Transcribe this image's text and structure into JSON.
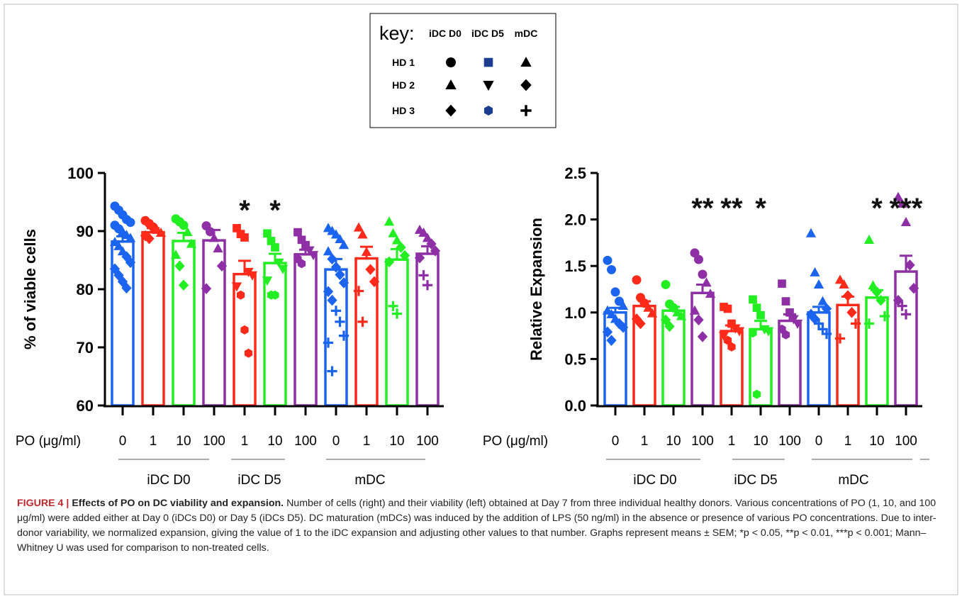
{
  "key": {
    "title": "key:",
    "columns": [
      "iDC D0",
      "iDC D5",
      "mDC"
    ],
    "rows": [
      {
        "label": "HD 1",
        "symbols": [
          "circle",
          "square",
          "triangle"
        ]
      },
      {
        "label": "HD 2",
        "symbols": [
          "triangle",
          "triangle-down",
          "diamond"
        ]
      },
      {
        "label": "HD 3",
        "symbols": [
          "diamond",
          "hexagon",
          "plus"
        ]
      }
    ]
  },
  "colors": {
    "iDC_D0": "#1a64f0",
    "iDC_D5": "#ff2a1a",
    "mDC_blue": "#1a64f0",
    "conc_1": "#ff2a1a",
    "conc_10": "#22ee22",
    "conc_100": "#8e2fa6"
  },
  "x_axis": {
    "prefix": "PO (μg/ml)",
    "ticks": [
      "0",
      "1",
      "10",
      "100",
      "1",
      "10",
      "100",
      "0",
      "1",
      "10",
      "100"
    ],
    "groups": [
      "iDC D0",
      "iDC D5",
      "mDC"
    ]
  },
  "chart_data": [
    {
      "type": "bar",
      "ylabel": "% of viable cells",
      "ylim": [
        60,
        100
      ],
      "yticks": [
        "60",
        "70",
        "80",
        "90",
        "100"
      ],
      "categories": [
        "0",
        "1",
        "10",
        "100",
        "1",
        "10",
        "100",
        "0",
        "1",
        "10",
        "100"
      ],
      "groups": [
        "iDC D0",
        "iDC D0",
        "iDC D0",
        "iDC D0",
        "iDC D5",
        "iDC D5",
        "iDC D5",
        "mDC",
        "mDC",
        "mDC",
        "mDC"
      ],
      "values": [
        88.2,
        89.8,
        88.3,
        88.4,
        82.6,
        84.5,
        86.0,
        83.4,
        85.3,
        85.1,
        86.1
      ],
      "sem": [
        0.9,
        0.7,
        1.4,
        1.8,
        2.3,
        1.6,
        0.8,
        1.8,
        2.0,
        1.8,
        1.3
      ],
      "significance": [
        "",
        "",
        "",
        "",
        "*",
        "*",
        "",
        "",
        "",
        "",
        ""
      ],
      "points": [
        [
          94.3,
          93.6,
          92.8,
          92.0,
          91.5,
          91.0,
          90.4,
          89.9,
          89.3,
          88.8,
          88.1,
          87.4,
          86.5,
          85.6,
          84.6,
          83.5,
          82.4,
          81.3,
          80.2
        ],
        [
          91.8,
          91.3,
          90.7,
          90.2,
          89.7,
          89.2,
          88.7
        ],
        [
          92.1,
          91.6,
          91.0,
          89.8,
          87.8,
          85.9,
          84.0,
          80.7
        ],
        [
          90.9,
          89.9,
          88.8,
          87.0,
          84.0,
          80.1
        ],
        [
          90.5,
          89.5,
          88.9,
          83.0,
          82.4,
          80.5,
          79.0,
          73.0,
          69.0
        ],
        [
          89.6,
          88.3,
          87.2,
          84.6,
          83.5,
          81.5,
          79.0,
          79.0
        ],
        [
          89.8,
          88.5,
          87.6,
          86.7,
          85.9,
          85.2,
          84.4
        ],
        [
          90.5,
          90.0,
          89.4,
          88.6,
          87.6,
          86.5,
          85.2,
          83.8,
          82.5,
          81.1,
          79.6,
          78.1,
          76.3,
          74.4,
          72.0,
          70.8,
          65.9
        ],
        [
          90.6,
          89.4,
          86.4,
          83.4,
          81.3,
          79.7,
          74.4
        ],
        [
          91.6,
          89.6,
          88.4,
          87.2,
          85.8,
          84.7,
          77.1,
          75.8
        ],
        [
          90.2,
          89.7,
          88.8,
          87.8,
          86.6,
          85.4,
          82.4,
          80.7
        ]
      ]
    },
    {
      "type": "bar",
      "ylabel": "Relative Expansion",
      "ylim": [
        0,
        2.5
      ],
      "yticks": [
        "0.0",
        "0.5",
        "1.0",
        "1.5",
        "2.0",
        "2.5"
      ],
      "categories": [
        "0",
        "1",
        "10",
        "100",
        "1",
        "10",
        "100",
        "0",
        "1",
        "10",
        "100"
      ],
      "groups": [
        "iDC D0",
        "iDC D0",
        "iDC D0",
        "iDC D0",
        "iDC D5",
        "iDC D5",
        "iDC D5",
        "mDC",
        "mDC",
        "mDC",
        "mDC"
      ],
      "values": [
        1.0,
        1.07,
        1.02,
        1.21,
        0.8,
        0.82,
        0.91,
        1.0,
        1.08,
        1.16,
        1.44
      ],
      "sem": [
        0.05,
        0.05,
        0.04,
        0.09,
        0.06,
        0.09,
        0.07,
        0.06,
        0.09,
        0.08,
        0.17
      ],
      "significance": [
        "",
        "",
        "",
        "**",
        "**",
        "*",
        "",
        "",
        "",
        "*",
        "***"
      ],
      "points": [
        [
          1.56,
          1.46,
          1.22,
          1.12,
          1.07,
          1.02,
          0.98,
          0.93,
          0.88,
          0.84,
          0.79,
          0.7
        ],
        [
          1.35,
          1.16,
          1.1,
          1.05,
          0.99,
          0.93,
          0.88
        ],
        [
          1.3,
          1.09,
          1.05,
          1.0,
          0.96,
          0.92,
          0.85
        ],
        [
          1.64,
          1.57,
          1.41,
          1.32,
          1.2,
          1.02,
          0.92,
          0.74
        ],
        [
          1.06,
          1.04,
          0.88,
          0.83,
          0.8,
          0.75,
          0.7,
          0.63
        ],
        [
          1.14,
          1.05,
          0.97,
          0.82,
          0.8,
          0.78,
          0.12
        ],
        [
          1.31,
          1.12,
          1.0,
          0.93,
          0.88,
          0.82,
          0.76
        ],
        [
          1.85,
          1.43,
          1.3,
          1.12,
          1.04,
          0.98,
          0.93,
          0.88,
          0.82,
          0.77
        ],
        [
          1.35,
          1.3,
          1.18,
          1.0,
          0.88,
          0.72
        ],
        [
          1.78,
          1.29,
          1.22,
          1.13,
          0.96,
          0.88
        ],
        [
          2.24,
          2.17,
          1.97,
          1.51,
          1.26,
          1.13,
          1.07,
          0.98
        ]
      ]
    }
  ],
  "caption": {
    "label": "FIGURE 4",
    "separator": "|",
    "title": "Effects of PO on DC viability and expansion.",
    "text": "Number of cells (right) and their viability (left) obtained at Day 7 from three individual healthy donors. Various concentrations of PO (1, 10, and 100 μg/ml) were added either at Day 0 (iDCs D0) or Day 5 (iDCs D5). DC maturation (mDCs) was induced by the addition of LPS (50 ng/ml) in the absence or presence of various PO concentrations. Due to inter-donor variability, we normalized expansion, giving the value of 1 to the iDC expansion and adjusting other values to that number. Graphs represent means ± SEM; *p < 0.05, **p < 0.01, ***p < 0.001; Mann–Whitney U was used for comparison to non-treated cells."
  }
}
